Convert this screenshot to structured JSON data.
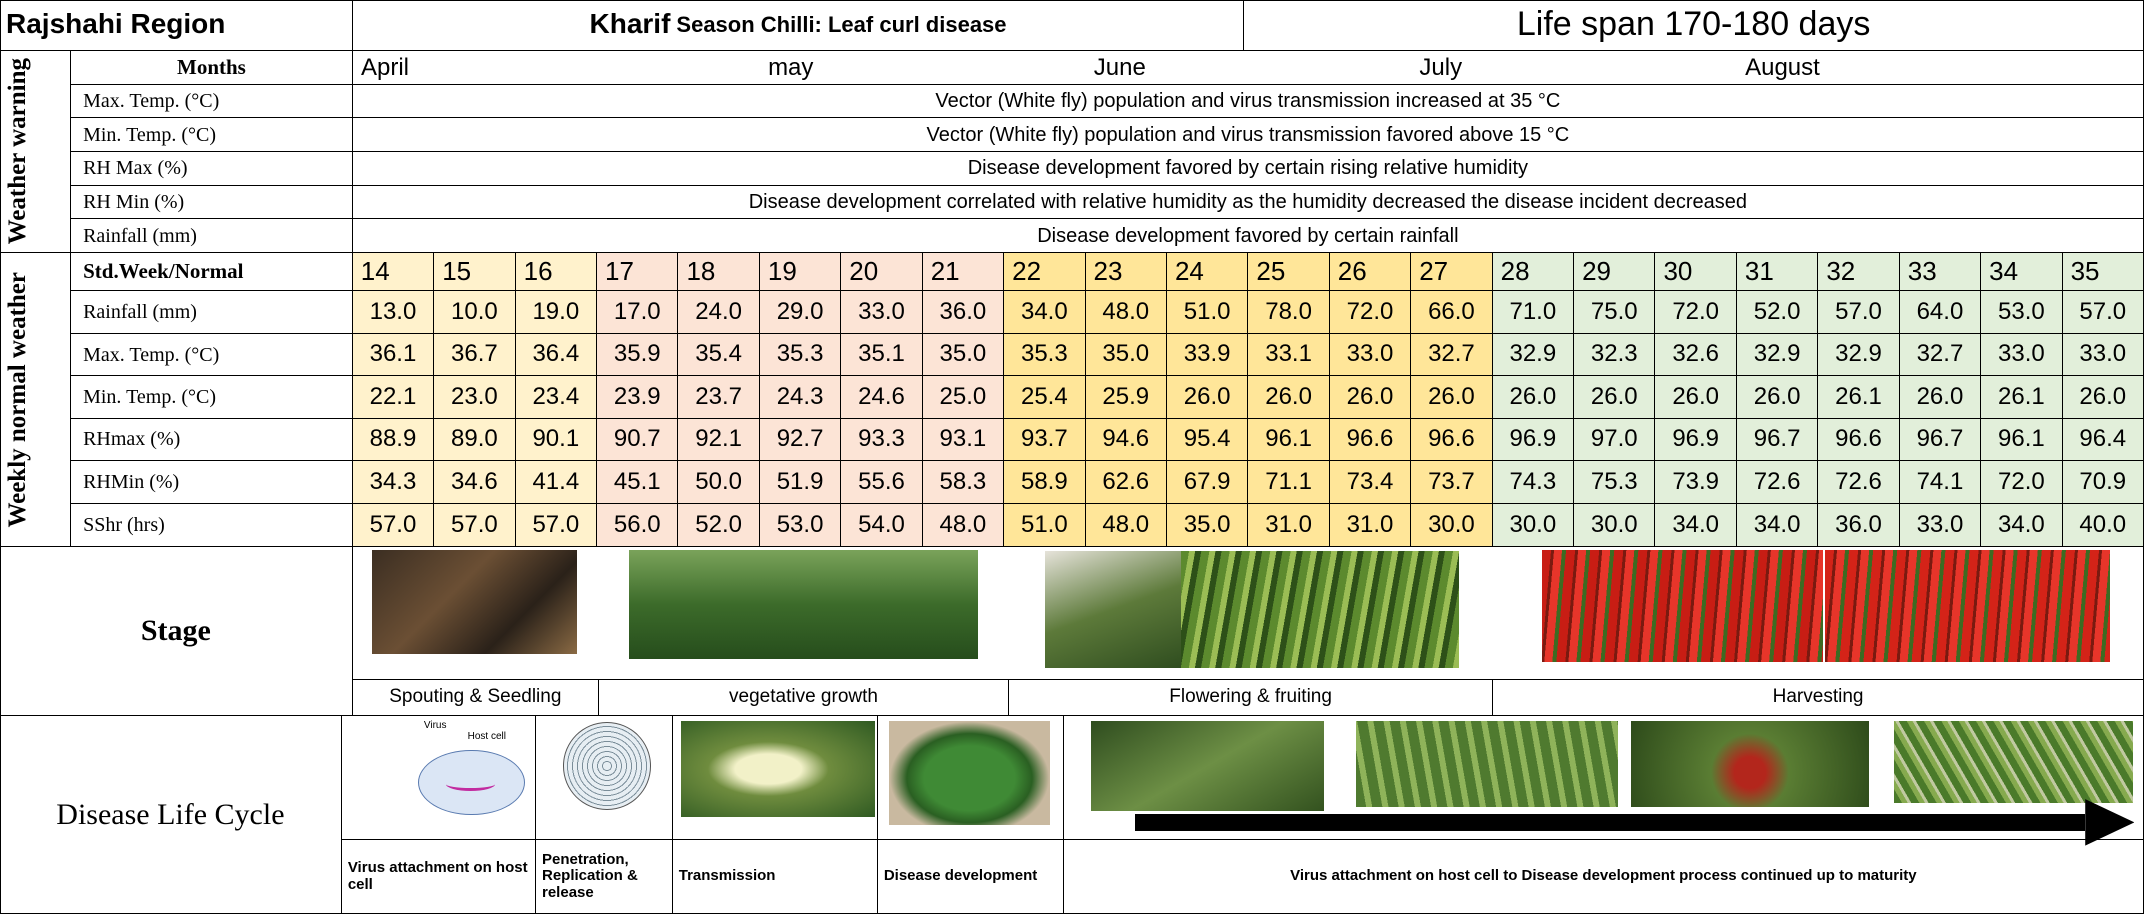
{
  "header": {
    "region": "Rajshahi Region",
    "title_bold": "Kharif",
    "title_rest": "Season Chilli: Leaf curl disease",
    "lifespan": "Life span 170-180 days"
  },
  "months": {
    "label": "Months",
    "items": [
      "April",
      "may",
      "June",
      "July",
      "August"
    ]
  },
  "weather_warning": {
    "group_label": "Weather warning",
    "rows": [
      {
        "label": "Max. Temp. (°C)",
        "text": "Vector (White fly) population and virus transmission increased at 35 °C"
      },
      {
        "label": "Min. Temp. (°C)",
        "text": "Vector (White fly) population and virus transmission favored above 15 °C"
      },
      {
        "label": "RH Max (%)",
        "text": "Disease development favored by certain rising relative humidity"
      },
      {
        "label": "RH Min (%)",
        "text": "Disease development correlated with relative humidity as the humidity decreased the disease incident decreased"
      },
      {
        "label": "Rainfall (mm)",
        "text": "Disease development favored by certain rainfall"
      }
    ]
  },
  "weekly_normal": {
    "group_label": "Weekly normal weather",
    "header_label": "Std.Week/Normal",
    "weeks": [
      14,
      15,
      16,
      17,
      18,
      19,
      20,
      21,
      22,
      23,
      24,
      25,
      26,
      27,
      28,
      29,
      30,
      31,
      32,
      33,
      34,
      35
    ],
    "rows": [
      {
        "label": "Rainfall (mm)",
        "values": [
          "13.0",
          "10.0",
          "19.0",
          "17.0",
          "24.0",
          "29.0",
          "33.0",
          "36.0",
          "34.0",
          "48.0",
          "51.0",
          "78.0",
          "72.0",
          "66.0",
          "71.0",
          "75.0",
          "72.0",
          "52.0",
          "57.0",
          "64.0",
          "53.0",
          "57.0"
        ]
      },
      {
        "label": "Max. Temp. (°C)",
        "values": [
          "36.1",
          "36.7",
          "36.4",
          "35.9",
          "35.4",
          "35.3",
          "35.1",
          "35.0",
          "35.3",
          "35.0",
          "33.9",
          "33.1",
          "33.0",
          "32.7",
          "32.9",
          "32.3",
          "32.6",
          "32.9",
          "32.9",
          "32.7",
          "33.0",
          "33.0"
        ]
      },
      {
        "label": "Min. Temp. (°C)",
        "values": [
          "22.1",
          "23.0",
          "23.4",
          "23.9",
          "23.7",
          "24.3",
          "24.6",
          "25.0",
          "25.4",
          "25.9",
          "26.0",
          "26.0",
          "26.0",
          "26.0",
          "26.0",
          "26.0",
          "26.0",
          "26.0",
          "26.1",
          "26.0",
          "26.1",
          "26.0"
        ]
      },
      {
        "label": "RHmax (%)",
        "values": [
          "88.9",
          "89.0",
          "90.1",
          "90.7",
          "92.1",
          "92.7",
          "93.3",
          "93.1",
          "93.7",
          "94.6",
          "95.4",
          "96.1",
          "96.6",
          "96.6",
          "96.9",
          "97.0",
          "96.9",
          "96.7",
          "96.6",
          "96.7",
          "96.1",
          "96.4"
        ]
      },
      {
        "label": "RHMin (%)",
        "values": [
          "34.3",
          "34.6",
          "41.4",
          "45.1",
          "50.0",
          "51.9",
          "55.6",
          "58.3",
          "58.9",
          "62.6",
          "67.9",
          "71.1",
          "73.4",
          "73.7",
          "74.3",
          "75.3",
          "73.9",
          "72.6",
          "72.6",
          "74.1",
          "72.0",
          "70.9"
        ]
      },
      {
        "label": "SShr (hrs)",
        "values": [
          "57.0",
          "57.0",
          "57.0",
          "56.0",
          "52.0",
          "53.0",
          "54.0",
          "48.0",
          "51.0",
          "48.0",
          "35.0",
          "31.0",
          "31.0",
          "30.0",
          "30.0",
          "30.0",
          "34.0",
          "34.0",
          "36.0",
          "33.0",
          "34.0",
          "40.0"
        ]
      }
    ]
  },
  "stage": {
    "label": "Stage",
    "phases": [
      "Spouting  & Seedling",
      "vegetative growth",
      "Flowering & fruiting",
      "Harvesting"
    ]
  },
  "disease_life_cycle": {
    "label": "Disease Life Cycle",
    "virus_label": "Virus",
    "host_cell_label": "Host cell",
    "steps": [
      "Virus attachment on host cell",
      "Penetration, Replication & release",
      "Transmission",
      "Disease development",
      "Virus attachment on host cell to Disease development process continued up to maturity"
    ]
  }
}
